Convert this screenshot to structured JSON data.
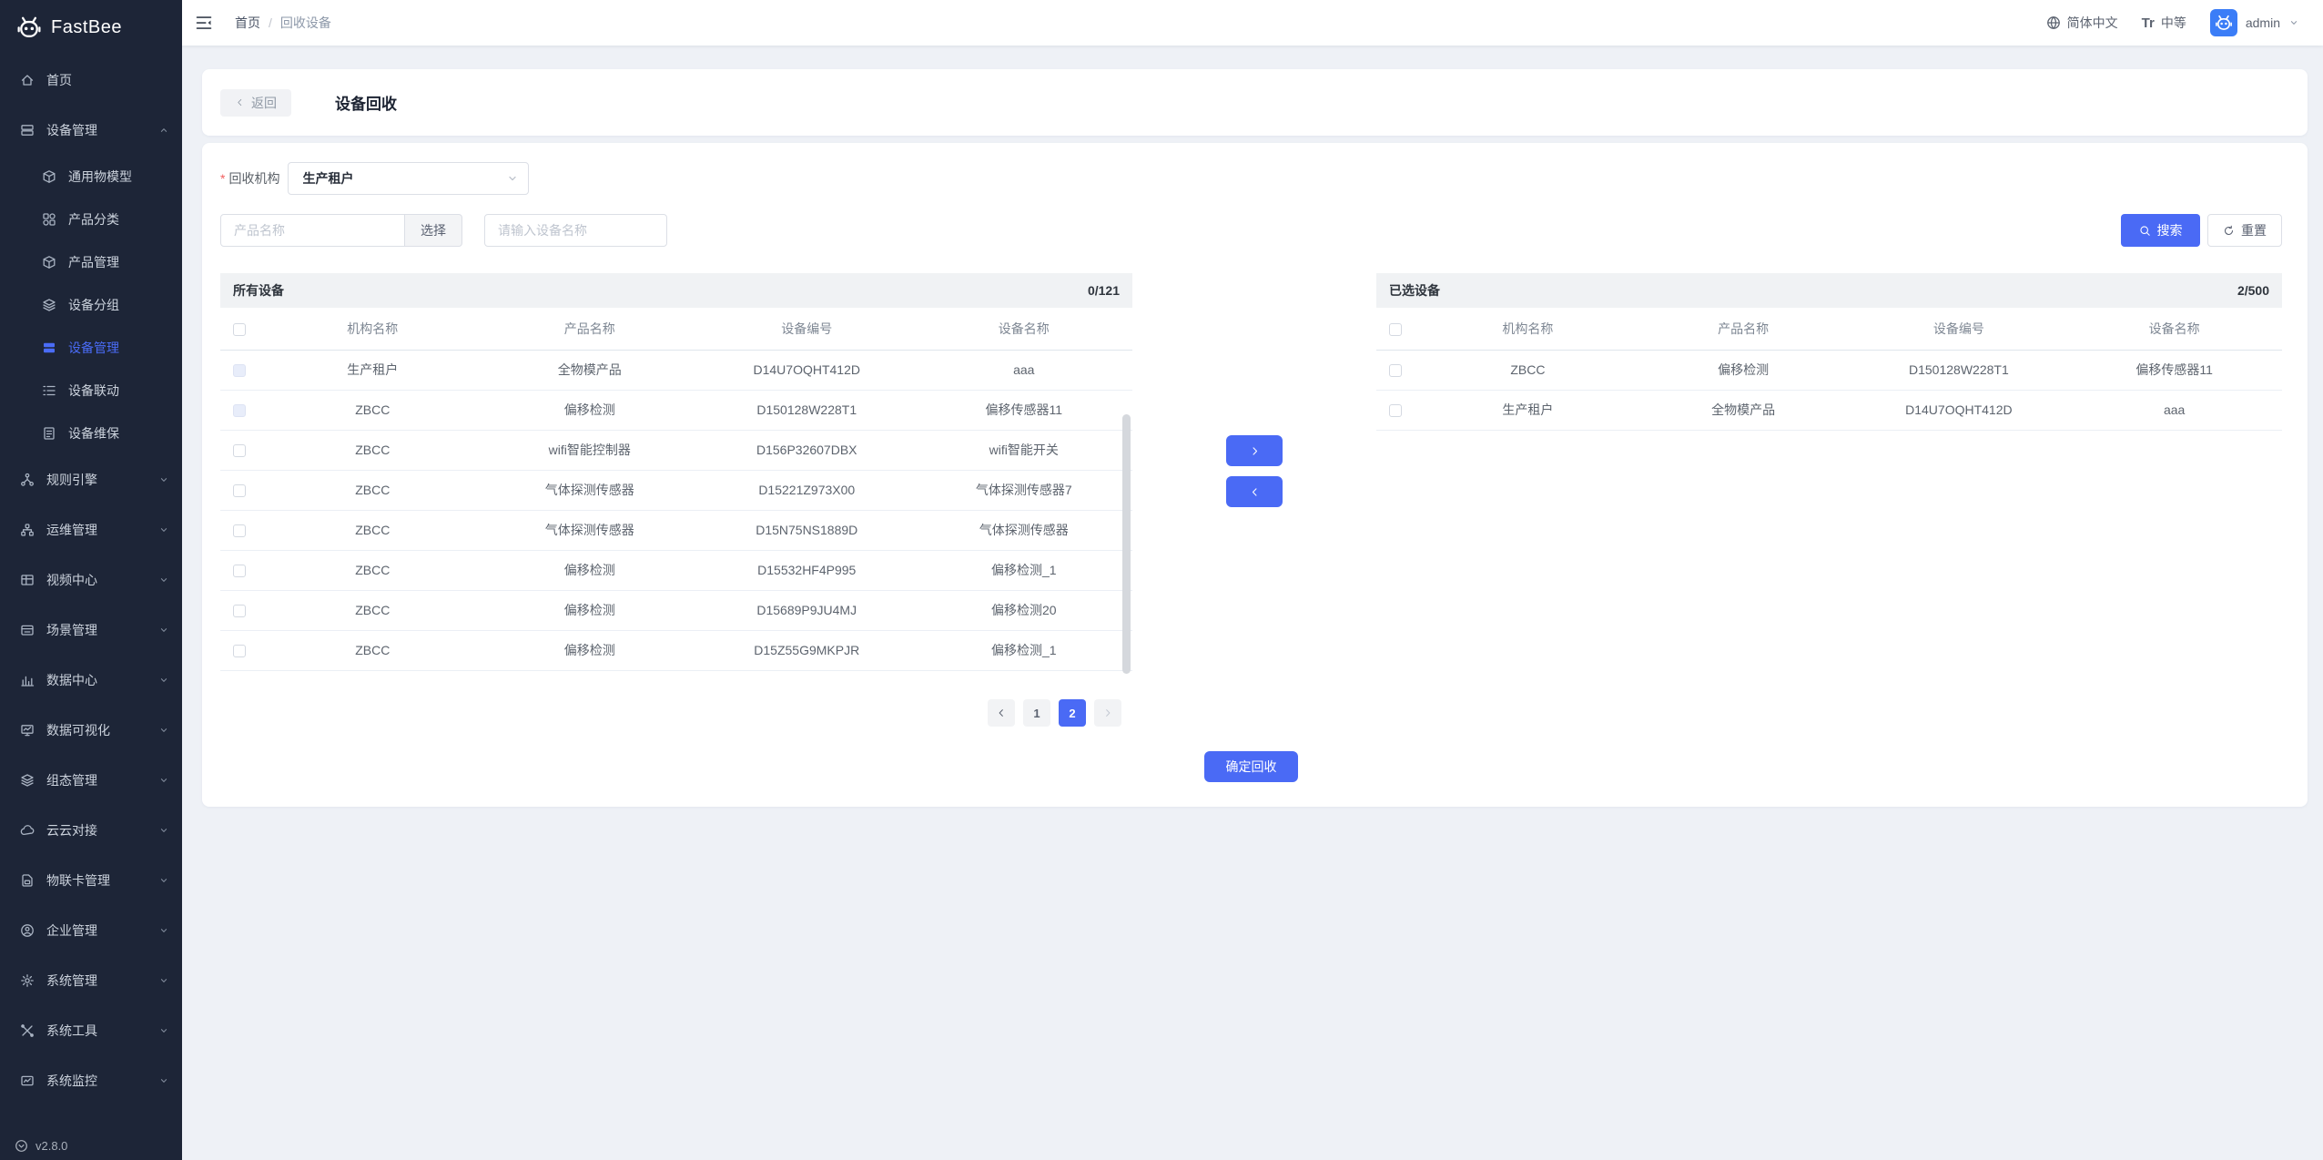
{
  "app": {
    "name": "FastBee",
    "version": "v2.8.0"
  },
  "colors": {
    "primary": "#4a6af5",
    "sidebar_bg": "#1d2537",
    "page_bg": "#eef1f6",
    "panel_header_bg": "#f0f2f4",
    "active_menu_text": "#4a6cf7",
    "avatar_bg": "#3b7df7",
    "danger_asterisk": "#f25f5f"
  },
  "icons": {
    "logo": "bee-icon",
    "sidebar_toggle": "collapse-icon",
    "language": "globe-icon",
    "font_size": "font-size-icon",
    "user_menu": "chevron-down-icon",
    "back": "chevron-left-icon",
    "select_caret": "chevron-down-icon",
    "search": "search-icon",
    "reset": "refresh-icon",
    "transfer_right": "chevron-right-icon",
    "transfer_left": "chevron-left-icon",
    "pagination_prev": "chevron-left-icon",
    "pagination_next": "chevron-right-icon",
    "version": "circle-chevron-down-icon",
    "avatar": "bee-icon"
  },
  "sidebar": {
    "items": [
      {
        "key": "home",
        "label": "首页",
        "icon": "home",
        "expandable": false
      },
      {
        "key": "device-management",
        "label": "设备管理",
        "icon": "device",
        "expandable": true,
        "expanded": true,
        "children": [
          {
            "key": "general-model",
            "label": "通用物模型",
            "icon": "cube"
          },
          {
            "key": "product-category",
            "label": "产品分类",
            "icon": "grid"
          },
          {
            "key": "product-management",
            "label": "产品管理",
            "icon": "cube"
          },
          {
            "key": "device-group",
            "label": "设备分组",
            "icon": "layers"
          },
          {
            "key": "device-list",
            "label": "设备管理",
            "icon": "server",
            "active": true
          },
          {
            "key": "device-linkage",
            "label": "设备联动",
            "icon": "list"
          },
          {
            "key": "device-maintenance",
            "label": "设备维保",
            "icon": "doc"
          }
        ]
      },
      {
        "key": "rule-engine",
        "label": "规则引擎",
        "icon": "node",
        "expandable": true
      },
      {
        "key": "ops-management",
        "label": "运维管理",
        "icon": "cluster",
        "expandable": true
      },
      {
        "key": "video-center",
        "label": "视频中心",
        "icon": "video",
        "expandable": true
      },
      {
        "key": "scene-management",
        "label": "场景管理",
        "icon": "scene",
        "expandable": true
      },
      {
        "key": "data-center",
        "label": "数据中心",
        "icon": "chart",
        "expandable": true
      },
      {
        "key": "data-visualization",
        "label": "数据可视化",
        "icon": "monitor",
        "expandable": true
      },
      {
        "key": "topology-management",
        "label": "组态管理",
        "icon": "layers",
        "expandable": true
      },
      {
        "key": "cloud-connect",
        "label": "云云对接",
        "icon": "cloud",
        "expandable": true
      },
      {
        "key": "sim-card-management",
        "label": "物联卡管理",
        "icon": "sim",
        "expandable": true
      },
      {
        "key": "enterprise-management",
        "label": "企业管理",
        "icon": "user",
        "expandable": true
      },
      {
        "key": "system-management",
        "label": "系统管理",
        "icon": "gear",
        "expandable": true
      },
      {
        "key": "system-tools",
        "label": "系统工具",
        "icon": "tools",
        "expandable": true
      },
      {
        "key": "system-monitor",
        "label": "系统监控",
        "icon": "gauge",
        "expandable": true
      }
    ]
  },
  "navbar": {
    "breadcrumb_home": "首页",
    "breadcrumb_sep": "/",
    "breadcrumb_current": "回收设备",
    "language": "简体中文",
    "font_icon_text": "Tr",
    "font_size_label": "中等",
    "username": "admin"
  },
  "page_header": {
    "back_label": "返回",
    "title": "设备回收"
  },
  "form": {
    "org_required_mark": "*",
    "org_label": "回收机构",
    "org_value": "生产租户",
    "product_placeholder": "产品名称",
    "select_button_label": "选择",
    "device_placeholder": "请输入设备名称",
    "search_label": "搜索",
    "reset_label": "重置"
  },
  "left_panel": {
    "title": "所有设备",
    "count": "0/121",
    "columns": [
      "机构名称",
      "产品名称",
      "设备编号",
      "设备名称"
    ],
    "rows": [
      {
        "org": "生产租户",
        "product": "全物模产品",
        "serial": "D14U7OQHT412D",
        "name": "aaa",
        "checkbox_disabled": true
      },
      {
        "org": "ZBCC",
        "product": "偏移检测",
        "serial": "D150128W228T1",
        "name": "偏移传感器11",
        "checkbox_disabled": true
      },
      {
        "org": "ZBCC",
        "product": "wifi智能控制器",
        "serial": "D156P32607DBX",
        "name": "wifi智能开关",
        "checkbox_disabled": false
      },
      {
        "org": "ZBCC",
        "product": "气体探测传感器",
        "serial": "D15221Z973X00",
        "name": "气体探测传感器7",
        "checkbox_disabled": false
      },
      {
        "org": "ZBCC",
        "product": "气体探测传感器",
        "serial": "D15N75NS1889D",
        "name": "气体探测传感器",
        "checkbox_disabled": false
      },
      {
        "org": "ZBCC",
        "product": "偏移检测",
        "serial": "D15532HF4P995",
        "name": "偏移检测_1",
        "checkbox_disabled": false
      },
      {
        "org": "ZBCC",
        "product": "偏移检测",
        "serial": "D15689P9JU4MJ",
        "name": "偏移检测20",
        "checkbox_disabled": false
      },
      {
        "org": "ZBCC",
        "product": "偏移检测",
        "serial": "D15Z55G9MKPJR",
        "name": "偏移检测_1",
        "checkbox_disabled": false
      }
    ],
    "pagination": {
      "pages": [
        "1",
        "2"
      ],
      "active_page": "2",
      "prev_enabled": true,
      "next_enabled": false
    }
  },
  "right_panel": {
    "title": "已选设备",
    "count": "2/500",
    "columns": [
      "机构名称",
      "产品名称",
      "设备编号",
      "设备名称"
    ],
    "rows": [
      {
        "org": "ZBCC",
        "product": "偏移检测",
        "serial": "D150128W228T1",
        "name": "偏移传感器11",
        "checkbox_disabled": false
      },
      {
        "org": "生产租户",
        "product": "全物模产品",
        "serial": "D14U7OQHT412D",
        "name": "aaa",
        "checkbox_disabled": false
      }
    ]
  },
  "confirm": {
    "label": "确定回收"
  }
}
